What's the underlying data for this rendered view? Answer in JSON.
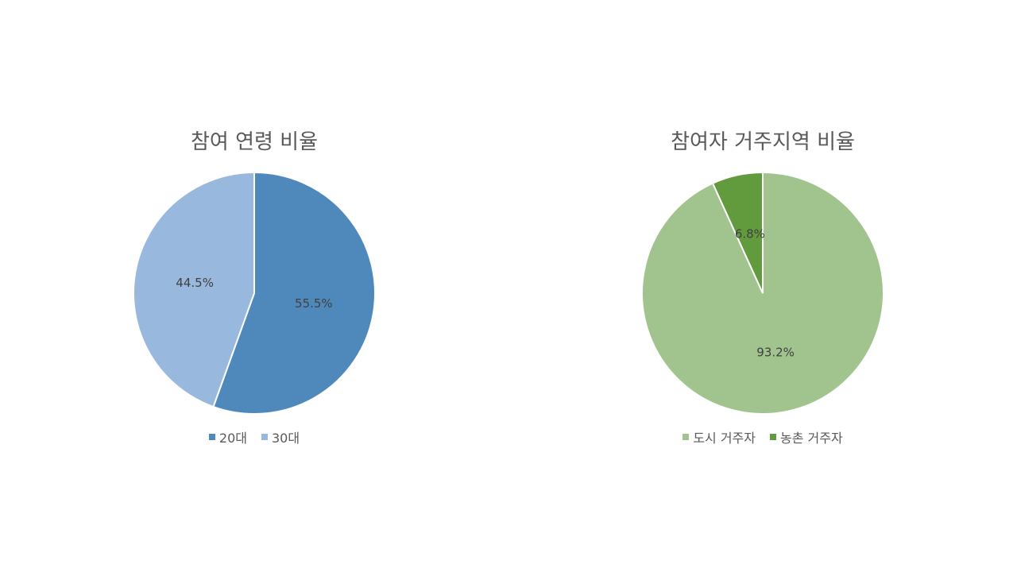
{
  "chart_data": [
    {
      "type": "pie",
      "title": "참여 연령 비율",
      "categories": [
        "20대",
        "30대"
      ],
      "values": [
        55.5,
        44.5
      ],
      "labels": [
        "55.5%",
        "44.5%"
      ],
      "colors": [
        "#4f88bb",
        "#99b8de"
      ],
      "legend_position": "bottom"
    },
    {
      "type": "pie",
      "title": "참여자 거주지역 비율",
      "categories": [
        "도시 거주자",
        "농촌 거주자"
      ],
      "values": [
        93.2,
        6.8
      ],
      "labels": [
        "93.2%",
        "6.8%"
      ],
      "colors": [
        "#a1c48f",
        "#629b3d"
      ],
      "legend_position": "bottom"
    }
  ]
}
